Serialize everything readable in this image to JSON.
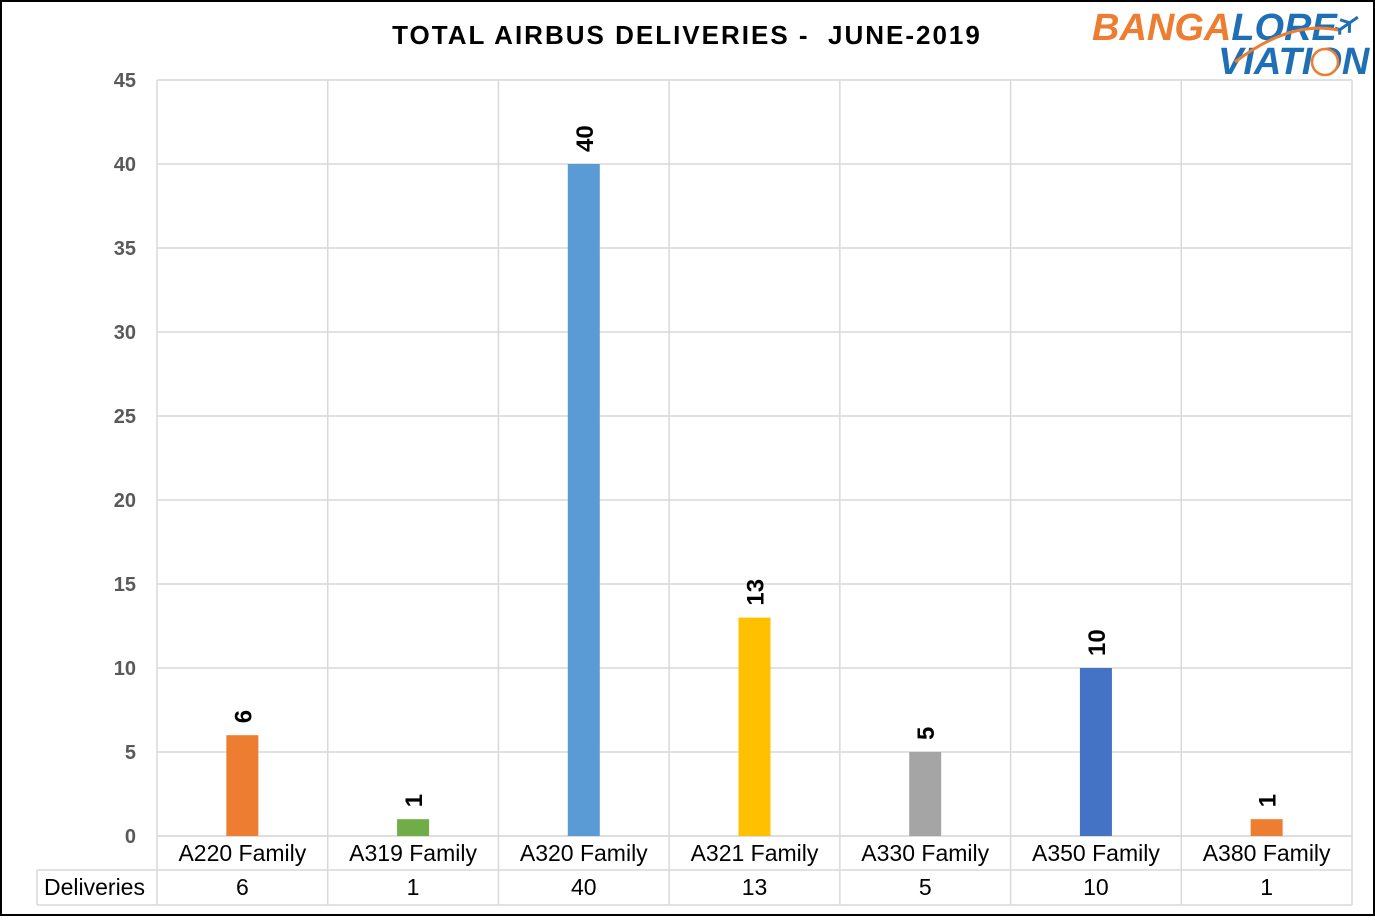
{
  "chart_data": {
    "type": "bar",
    "title": "TOTAL AIRBUS DELIVERIES -  JUNE-2019",
    "categories": [
      "A220 Family",
      "A319 Family",
      "A320 Family",
      "A321 Family",
      "A330 Family",
      "A350 Family",
      "A380 Family"
    ],
    "series": [
      {
        "name": "Deliveries",
        "values": [
          6,
          1,
          40,
          13,
          5,
          10,
          1
        ]
      }
    ],
    "bar_colors": [
      "#ED7D31",
      "#70AD47",
      "#5B9BD5",
      "#FFC000",
      "#A5A5A5",
      "#4472C4",
      "#ED7D31"
    ],
    "ylim": [
      0,
      45
    ],
    "yticks": [
      "0",
      "5",
      "10",
      "15",
      "20",
      "25",
      "30",
      "35",
      "40",
      "45"
    ],
    "grid": true,
    "data_table": true,
    "data_labels": true
  },
  "logo": {
    "line1_orange": "BANGA",
    "line1_blue": "LORE",
    "line2": "VIATION"
  }
}
